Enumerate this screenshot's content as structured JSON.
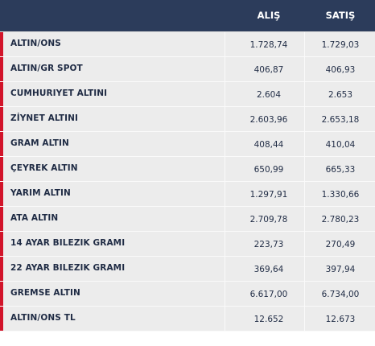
{
  "header": {
    "buy_label": "ALIŞ",
    "sell_label": "SATIŞ"
  },
  "rows": [
    {
      "name": "ALTIN/ONS",
      "buy": "1.728,74",
      "sell": "1.729,03"
    },
    {
      "name": "ALTIN/GR SPOT",
      "buy": "406,87",
      "sell": "406,93"
    },
    {
      "name": "CUMHURIYET ALTINI",
      "buy": "2.604",
      "sell": "2.653"
    },
    {
      "name": "ZİYNET ALTINI",
      "buy": "2.603,96",
      "sell": "2.653,18"
    },
    {
      "name": "GRAM ALTIN",
      "buy": "408,44",
      "sell": "410,04"
    },
    {
      "name": "ÇEYREK ALTIN",
      "buy": "650,99",
      "sell": "665,33"
    },
    {
      "name": "YARIM ALTIN",
      "buy": "1.297,91",
      "sell": "1.330,66"
    },
    {
      "name": "ATA ALTIN",
      "buy": "2.709,78",
      "sell": "2.780,23"
    },
    {
      "name": "14 AYAR BILEZIK GRAMI",
      "buy": "223,73",
      "sell": "270,49"
    },
    {
      "name": "22 AYAR BILEZIK GRAMI",
      "buy": "369,64",
      "sell": "397,94"
    },
    {
      "name": "GREMSE ALTIN",
      "buy": "6.617,00",
      "sell": "6.734,00"
    },
    {
      "name": "ALTIN/ONS TL",
      "buy": "12.652",
      "sell": "12.673"
    }
  ],
  "colors": {
    "header_bg": "#2c3c5b",
    "row_bg": "#ececec",
    "marker": "#d2142a"
  }
}
